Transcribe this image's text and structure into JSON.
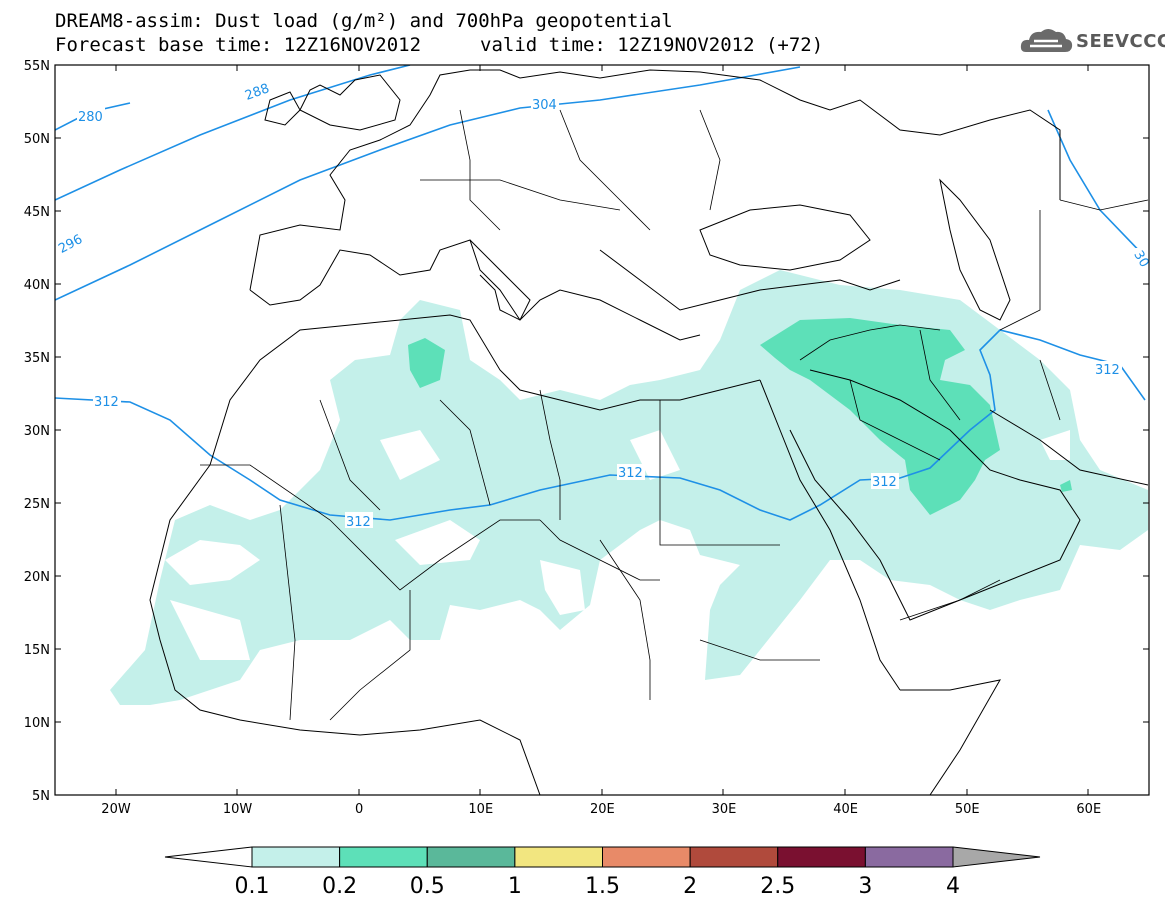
{
  "title_line1": "DREAM8-assim: Dust load (g/m²) and 700hPa geopotential",
  "title_line2": "Forecast base time: 12Z16NOV2012",
  "title_line2b": "valid time: 12Z19NOV2012 (+72)",
  "logo_text": "SEEVCCC",
  "map": {
    "lat_labels": [
      "55N",
      "50N",
      "45N",
      "40N",
      "35N",
      "30N",
      "25N",
      "20N",
      "15N",
      "10N",
      "5N"
    ],
    "lon_labels": [
      "20W",
      "10W",
      "0",
      "10E",
      "20E",
      "30E",
      "40E",
      "50E",
      "60E"
    ],
    "lat_range": [
      5,
      55
    ],
    "lon_range": [
      -25,
      65
    ]
  },
  "contours": [
    {
      "label": "280",
      "lon": -22.5,
      "lat": 51
    },
    {
      "label": "288",
      "lon": -11,
      "lat": 53
    },
    {
      "label": "296",
      "lon": -23,
      "lat": 43.5
    },
    {
      "label": "304",
      "lon": 17,
      "lat": 52
    },
    {
      "label": "312",
      "lon": -21,
      "lat": 32
    },
    {
      "label": "312",
      "lon": 0,
      "lat": 23.8
    },
    {
      "label": "312",
      "lon": 22.5,
      "lat": 26.5
    },
    {
      "label": "312",
      "lon": 44,
      "lat": 26.3
    },
    {
      "label": "312",
      "lon": 61,
      "lat": 34.3
    },
    {
      "label": "30",
      "lon": 64.5,
      "lat": 41.8
    }
  ],
  "colorbar": {
    "labels": [
      "0.1",
      "0.2",
      "0.5",
      "1",
      "1.5",
      "2",
      "2.5",
      "3",
      "4"
    ],
    "colors": [
      "#c4f0ea",
      "#5de0b8",
      "#5ab89a",
      "#f2e680",
      "#e88a68",
      "#b04a3c",
      "#7a1030",
      "#8a6aa0",
      "#a8a8a8"
    ]
  }
}
